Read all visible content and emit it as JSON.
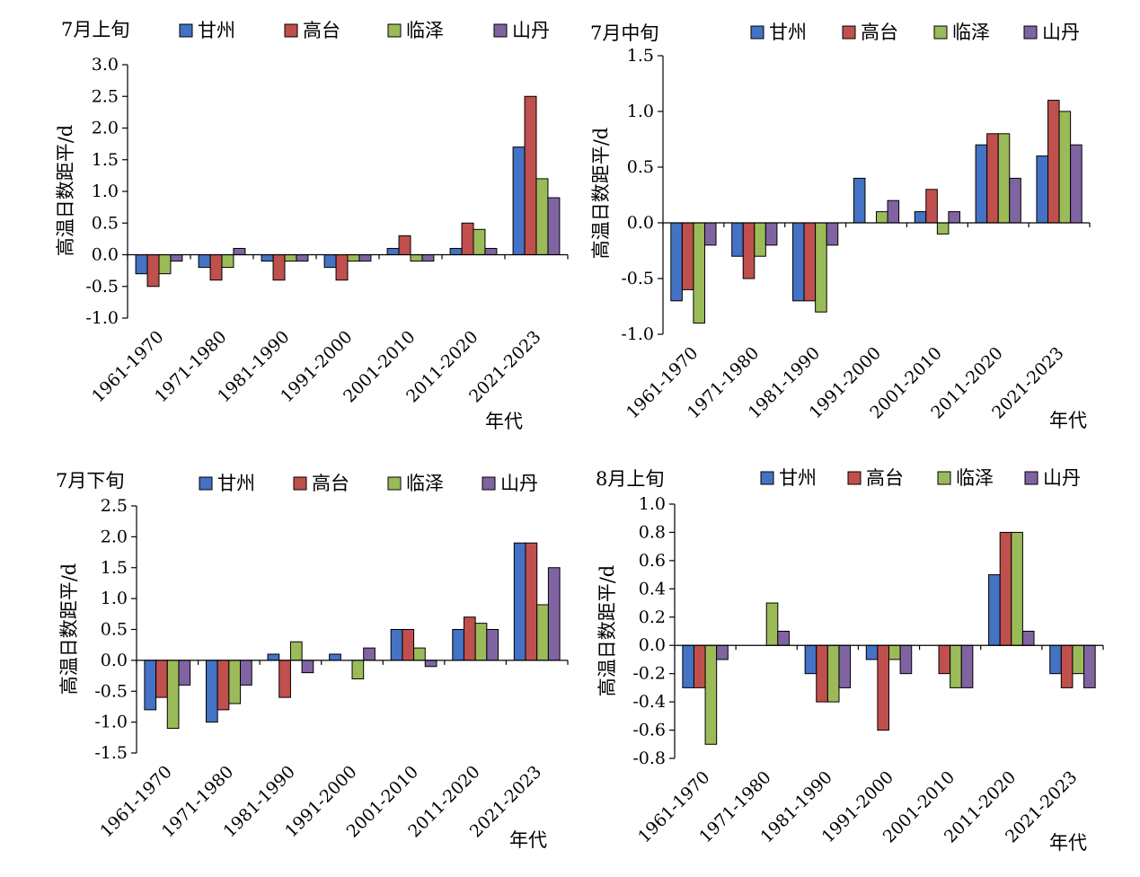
{
  "colors": {
    "甘州": "#4472C4",
    "高台": "#C0504D",
    "临泽": "#9BBB59",
    "山丹": "#8064A2",
    "axis": "#000000",
    "bar_stroke": "#000000"
  },
  "chart_data": [
    {
      "type": "bar",
      "title": "7月上旬",
      "xlabel": "年代",
      "ylabel": "高温日数距平/d",
      "categories": [
        "1961-1970",
        "1971-1980",
        "1981-1990",
        "1991-2000",
        "2001-2010",
        "2011-2020",
        "2021-2023"
      ],
      "ylim": [
        -1.0,
        3.0
      ],
      "yticks": [
        -1.0,
        -0.5,
        0.0,
        0.5,
        1.0,
        1.5,
        2.0,
        2.5,
        3.0
      ],
      "ytick_labels": [
        "-1.0",
        "-0.5",
        "0.0",
        "0.5",
        "1.0",
        "1.5",
        "2.0",
        "2.5",
        "3.0"
      ],
      "legend": "top",
      "series": [
        {
          "name": "甘州",
          "values": [
            -0.3,
            -0.2,
            -0.1,
            -0.2,
            0.1,
            0.1,
            1.7
          ]
        },
        {
          "name": "高台",
          "values": [
            -0.5,
            -0.4,
            -0.4,
            -0.4,
            0.3,
            0.5,
            2.5
          ]
        },
        {
          "name": "临泽",
          "values": [
            -0.3,
            -0.2,
            -0.1,
            -0.1,
            -0.1,
            0.4,
            1.2
          ]
        },
        {
          "name": "山丹",
          "values": [
            -0.1,
            0.1,
            -0.1,
            -0.1,
            -0.1,
            0.1,
            0.9
          ]
        }
      ]
    },
    {
      "type": "bar",
      "title": "7月中旬",
      "xlabel": "年代",
      "ylabel": "高温日数距平/d",
      "categories": [
        "1961-1970",
        "1971-1980",
        "1981-1990",
        "1991-2000",
        "2001-2010",
        "2011-2020",
        "2021-2023"
      ],
      "ylim": [
        -1.0,
        1.5
      ],
      "yticks": [
        -1.0,
        -0.5,
        0.0,
        0.5,
        1.0,
        1.5
      ],
      "ytick_labels": [
        "-1.0",
        "-0.5",
        "0.0",
        "0.5",
        "1.0",
        "1.5"
      ],
      "legend": "top",
      "series": [
        {
          "name": "甘州",
          "values": [
            -0.7,
            -0.3,
            -0.7,
            0.4,
            0.1,
            0.7,
            0.6
          ]
        },
        {
          "name": "高台",
          "values": [
            -0.6,
            -0.5,
            -0.7,
            0.0,
            0.3,
            0.8,
            1.1
          ]
        },
        {
          "name": "临泽",
          "values": [
            -0.9,
            -0.3,
            -0.8,
            0.1,
            -0.1,
            0.8,
            1.0
          ]
        },
        {
          "name": "山丹",
          "values": [
            -0.2,
            -0.2,
            -0.2,
            0.2,
            0.1,
            0.4,
            0.7
          ]
        }
      ]
    },
    {
      "type": "bar",
      "title": "7月下旬",
      "xlabel": "年代",
      "ylabel": "高温日数距平/d",
      "categories": [
        "1961-1970",
        "1971-1980",
        "1981-1990",
        "1991-2000",
        "2001-2010",
        "2011-2020",
        "2021-2023"
      ],
      "ylim": [
        -1.5,
        2.5
      ],
      "yticks": [
        -1.5,
        -1.0,
        -0.5,
        0.0,
        0.5,
        1.0,
        1.5,
        2.0,
        2.5
      ],
      "ytick_labels": [
        "-1.5",
        "-1.0",
        "-0.5",
        "0.0",
        "0.5",
        "1.0",
        "1.5",
        "2.0",
        "2.5"
      ],
      "legend": "top",
      "series": [
        {
          "name": "甘州",
          "values": [
            -0.8,
            -1.0,
            0.1,
            0.1,
            0.5,
            0.5,
            1.9
          ]
        },
        {
          "name": "高台",
          "values": [
            -0.6,
            -0.8,
            -0.6,
            0.0,
            0.5,
            0.7,
            1.9
          ]
        },
        {
          "name": "临泽",
          "values": [
            -1.1,
            -0.7,
            0.3,
            -0.3,
            0.2,
            0.6,
            0.9
          ]
        },
        {
          "name": "山丹",
          "values": [
            -0.4,
            -0.4,
            -0.2,
            0.2,
            -0.1,
            0.5,
            1.5
          ]
        }
      ]
    },
    {
      "type": "bar",
      "title": "8月上旬",
      "xlabel": "年代",
      "ylabel": "高温日数距平/d",
      "categories": [
        "1961-1970",
        "1971-1980",
        "1981-1990",
        "1991-2000",
        "2001-2010",
        "2011-2020",
        "2021-2023"
      ],
      "ylim": [
        -0.8,
        1.0
      ],
      "yticks": [
        -0.8,
        -0.6,
        -0.4,
        -0.2,
        0.0,
        0.2,
        0.4,
        0.6,
        0.8,
        1.0
      ],
      "ytick_labels": [
        "-0.8",
        "-0.6",
        "-0.4",
        "-0.2",
        "0.0",
        "0.2",
        "0.4",
        "0.6",
        "0.8",
        "1.0"
      ],
      "legend": "top",
      "series": [
        {
          "name": "甘州",
          "values": [
            -0.3,
            0.0,
            -0.2,
            -0.1,
            0.0,
            0.5,
            -0.2
          ]
        },
        {
          "name": "高台",
          "values": [
            -0.3,
            0.0,
            -0.4,
            -0.6,
            -0.2,
            0.8,
            -0.3
          ]
        },
        {
          "name": "临泽",
          "values": [
            -0.7,
            0.3,
            -0.4,
            -0.1,
            -0.3,
            0.8,
            -0.2
          ]
        },
        {
          "name": "山丹",
          "values": [
            -0.1,
            0.1,
            -0.3,
            -0.2,
            -0.3,
            0.1,
            -0.3
          ]
        }
      ]
    }
  ]
}
